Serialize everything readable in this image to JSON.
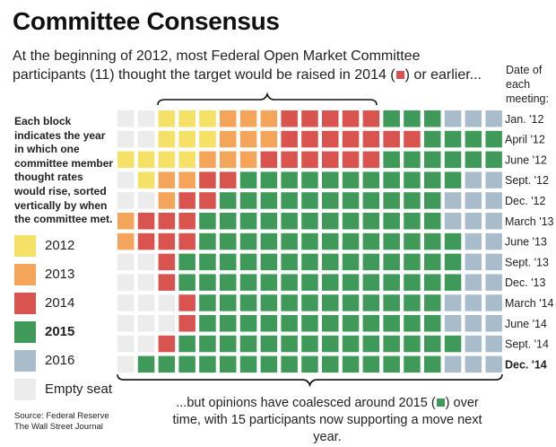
{
  "header": {
    "title": "Committee Consensus",
    "subtitle_part1": "At the beginning of 2012, most Federal Open Market Committee participants (11) thought the target would be raised in 2014 (",
    "subtitle_part2": ") or earlier...",
    "date_header": "Date of each meeting:"
  },
  "description": "Each block indicates the year in which one committee member thought rates would rise, sorted vertically by when the committee met.",
  "legend": [
    {
      "label": "2012",
      "color": "#f5e166",
      "bold": false
    },
    {
      "label": "2013",
      "color": "#f5a55a",
      "bold": false
    },
    {
      "label": "2014",
      "color": "#d9534f",
      "bold": false
    },
    {
      "label": "2015",
      "color": "#3f9a5a",
      "bold": true
    },
    {
      "label": "2016",
      "color": "#a9bccb",
      "bold": false
    },
    {
      "label": "Empty seat",
      "color": "#ececec",
      "bold": false
    }
  ],
  "footer": {
    "part1": "...but opinions have coalesced around 2015 (",
    "part2": ") over time, with 15 participants now supporting a move next year."
  },
  "source": {
    "line1": "Source: Federal Reserve",
    "line2": "The Wall Street Journal"
  },
  "chart_data": {
    "type": "heatmap",
    "title": "Committee Consensus",
    "colors": {
      "E": "#ececec",
      "2012": "#f5e166",
      "2013": "#f5a55a",
      "2014": "#d9534f",
      "2015": "#3f9a5a",
      "2016": "#a9bccb"
    },
    "rows": [
      {
        "date": "Jan. '12",
        "bold": false,
        "cells": [
          "E",
          "E",
          "2012",
          "2012",
          "2012",
          "2013",
          "2013",
          "2013",
          "2014",
          "2014",
          "2014",
          "2014",
          "2014",
          "2015",
          "2015",
          "2015",
          "2016",
          "2016",
          "2016"
        ]
      },
      {
        "date": "April '12",
        "bold": false,
        "cells": [
          "E",
          "E",
          "2012",
          "2012",
          "2012",
          "2013",
          "2013",
          "2013",
          "2014",
          "2014",
          "2014",
          "2014",
          "2014",
          "2014",
          "2014",
          "2015",
          "2015",
          "2015",
          "2015"
        ]
      },
      {
        "date": "June '12",
        "bold": false,
        "cells": [
          "2012",
          "2012",
          "2012",
          "2012",
          "2013",
          "2013",
          "2013",
          "2014",
          "2014",
          "2014",
          "2014",
          "2014",
          "2014",
          "2015",
          "2015",
          "2015",
          "2015",
          "2015",
          "2015"
        ]
      },
      {
        "date": "Sept. '12",
        "bold": false,
        "cells": [
          "E",
          "2012",
          "2013",
          "2013",
          "2014",
          "2014",
          "2015",
          "2015",
          "2015",
          "2015",
          "2015",
          "2015",
          "2015",
          "2015",
          "2015",
          "2015",
          "2015",
          "2016",
          "2016"
        ]
      },
      {
        "date": "Dec. '12",
        "bold": false,
        "cells": [
          "E",
          "E",
          "2013",
          "2014",
          "2014",
          "2015",
          "2015",
          "2015",
          "2015",
          "2015",
          "2015",
          "2015",
          "2015",
          "2015",
          "2015",
          "2015",
          "2016",
          "2016",
          "2016"
        ]
      },
      {
        "date": "March '13",
        "bold": false,
        "cells": [
          "2013",
          "2014",
          "2014",
          "2014",
          "2015",
          "2015",
          "2015",
          "2015",
          "2015",
          "2015",
          "2015",
          "2015",
          "2015",
          "2015",
          "2015",
          "2015",
          "2016",
          "2016",
          "2016"
        ]
      },
      {
        "date": "June '13",
        "bold": false,
        "cells": [
          "2013",
          "2014",
          "2014",
          "2014",
          "2015",
          "2015",
          "2015",
          "2015",
          "2015",
          "2015",
          "2015",
          "2015",
          "2015",
          "2015",
          "2015",
          "2015",
          "2015",
          "2016",
          "2016"
        ]
      },
      {
        "date": "Sept. '13",
        "bold": false,
        "cells": [
          "E",
          "E",
          "2014",
          "2015",
          "2015",
          "2015",
          "2015",
          "2015",
          "2015",
          "2015",
          "2015",
          "2015",
          "2015",
          "2015",
          "2015",
          "2015",
          "2015",
          "2016",
          "2016"
        ]
      },
      {
        "date": "Dec. '13",
        "bold": false,
        "cells": [
          "E",
          "E",
          "2014",
          "2015",
          "2015",
          "2015",
          "2015",
          "2015",
          "2015",
          "2015",
          "2015",
          "2015",
          "2015",
          "2015",
          "2015",
          "2015",
          "2015",
          "2016",
          "2016"
        ]
      },
      {
        "date": "March '14",
        "bold": false,
        "cells": [
          "E",
          "E",
          "E",
          "2014",
          "2015",
          "2015",
          "2015",
          "2015",
          "2015",
          "2015",
          "2015",
          "2015",
          "2015",
          "2015",
          "2015",
          "2015",
          "2016",
          "2016",
          "2016"
        ]
      },
      {
        "date": "June '14",
        "bold": false,
        "cells": [
          "E",
          "E",
          "E",
          "2014",
          "2015",
          "2015",
          "2015",
          "2015",
          "2015",
          "2015",
          "2015",
          "2015",
          "2015",
          "2015",
          "2015",
          "2015",
          "2016",
          "2016",
          "2016"
        ]
      },
      {
        "date": "Sept. '14",
        "bold": false,
        "cells": [
          "E",
          "E",
          "2014",
          "2015",
          "2015",
          "2015",
          "2015",
          "2015",
          "2015",
          "2015",
          "2015",
          "2015",
          "2015",
          "2015",
          "2015",
          "2015",
          "2015",
          "2016",
          "2016"
        ]
      },
      {
        "date": "Dec. '14",
        "bold": true,
        "cells": [
          "E",
          "2015",
          "2015",
          "2015",
          "2015",
          "2015",
          "2015",
          "2015",
          "2015",
          "2015",
          "2015",
          "2015",
          "2015",
          "2015",
          "2015",
          "2015",
          "2016",
          "2016",
          "2016"
        ]
      }
    ]
  }
}
